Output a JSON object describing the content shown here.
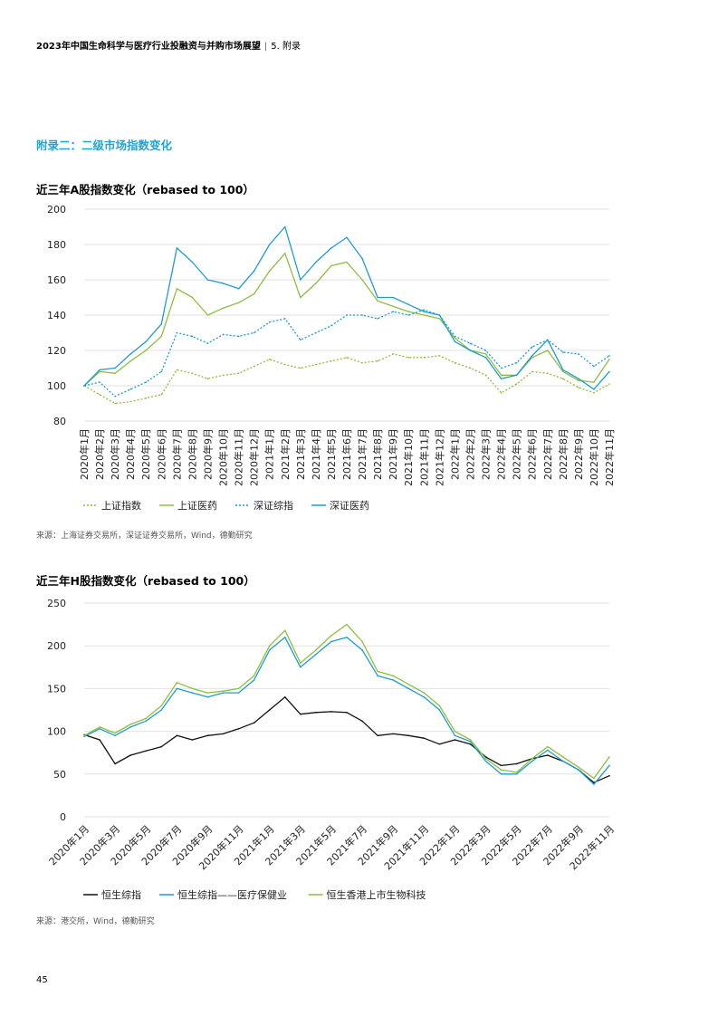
{
  "header": {
    "report_title": "2023年中国生命科学与医疗行业投融资与并购市场展望",
    "separator": "|",
    "section": "5. 附录"
  },
  "appendix_title": "附录二：二级市场指数变化",
  "page_number": "45",
  "charts": [
    {
      "title": "近三年A股指数变化（rebased to 100）",
      "source": "来源：上海证券交易所，深证证券交易所，Wind，德勤研究"
    },
    {
      "title": "近三年H股指数变化（rebased to 100）",
      "source": "来源：港交所，Wind，德勤研究"
    }
  ],
  "chart_data": [
    {
      "type": "line",
      "title": "近三年A股指数变化（rebased to 100）",
      "xlabel": "",
      "ylabel": "",
      "ylim": [
        80,
        200
      ],
      "y_ticks": [
        80,
        100,
        120,
        140,
        160,
        180,
        200
      ],
      "grid": true,
      "legend": "bottom",
      "categories": [
        "2020年1月",
        "2020年2月",
        "2020年3月",
        "2020年4月",
        "2020年5月",
        "2020年6月",
        "2020年7月",
        "2020年8月",
        "2020年9月",
        "2020年10月",
        "2020年11月",
        "2020年12月",
        "2021年1月",
        "2021年2月",
        "2021年3月",
        "2021年4月",
        "2021年5月",
        "2021年6月",
        "2021年7月",
        "2021年8月",
        "2021年9月",
        "2021年10月",
        "2021年11月",
        "2021年12月",
        "2022年1月",
        "2022年2月",
        "2022年3月",
        "2022年4月",
        "2022年5月",
        "2022年6月",
        "2022年7月",
        "2022年8月",
        "2022年9月",
        "2022年10月",
        "2022年11月"
      ],
      "series": [
        {
          "name": "上证指数",
          "color": "#8cbf3f",
          "dash": "2,2",
          "values": [
            100,
            95,
            90,
            91,
            93,
            95,
            109,
            107,
            104,
            106,
            107,
            111,
            115,
            112,
            110,
            112,
            114,
            116,
            113,
            114,
            118,
            116,
            116,
            117,
            113,
            110,
            106,
            96,
            101,
            108,
            107,
            104,
            99,
            96,
            101
          ]
        },
        {
          "name": "上证医药",
          "color": "#8cbf3f",
          "dash": "",
          "values": [
            100,
            108,
            107,
            114,
            120,
            128,
            155,
            150,
            140,
            144,
            147,
            152,
            165,
            175,
            150,
            158,
            168,
            170,
            160,
            148,
            145,
            142,
            140,
            138,
            127,
            120,
            118,
            106,
            106,
            116,
            120,
            108,
            103,
            102,
            115
          ]
        },
        {
          "name": "深证综指",
          "color": "#1f9bd1",
          "dash": "2,2",
          "values": [
            100,
            102,
            94,
            98,
            102,
            108,
            130,
            128,
            124,
            129,
            128,
            130,
            136,
            138,
            126,
            130,
            134,
            140,
            140,
            138,
            142,
            140,
            143,
            140,
            128,
            124,
            120,
            110,
            113,
            122,
            126,
            119,
            118,
            111,
            117
          ]
        },
        {
          "name": "深证医药",
          "color": "#1f9bd1",
          "dash": "",
          "values": [
            100,
            109,
            110,
            118,
            125,
            135,
            178,
            170,
            160,
            158,
            155,
            165,
            180,
            190,
            160,
            170,
            178,
            184,
            172,
            150,
            150,
            146,
            142,
            140,
            125,
            120,
            116,
            104,
            106,
            117,
            126,
            109,
            104,
            98,
            108
          ]
        }
      ]
    },
    {
      "type": "line",
      "title": "近三年H股指数变化（rebased to 100）",
      "xlabel": "",
      "ylabel": "",
      "ylim": [
        0,
        250
      ],
      "y_ticks": [
        0,
        50,
        100,
        150,
        200,
        250
      ],
      "grid": true,
      "legend": "bottom",
      "categories": [
        "2020年1月",
        "2020年2月",
        "2020年3月",
        "2020年4月",
        "2020年5月",
        "2020年6月",
        "2020年7月",
        "2020年8月",
        "2020年9月",
        "2020年10月",
        "2020年11月",
        "2020年12月",
        "2021年1月",
        "2021年2月",
        "2021年3月",
        "2021年4月",
        "2021年5月",
        "2021年6月",
        "2021年7月",
        "2021年8月",
        "2021年9月",
        "2021年10月",
        "2021年11月",
        "2021年12月",
        "2022年1月",
        "2022年2月",
        "2022年3月",
        "2022年4月",
        "2022年5月",
        "2022年6月",
        "2022年7月",
        "2022年8月",
        "2022年9月",
        "2022年10月",
        "2022年11月"
      ],
      "tick_labels": [
        "2020年1月",
        "2020年3月",
        "2020年5月",
        "2020年7月",
        "2020年9月",
        "2020年11月",
        "2021年1月",
        "2021年3月",
        "2021年5月",
        "2021年7月",
        "2021年9月",
        "2021年11月",
        "2022年1月",
        "2022年3月",
        "2022年5月",
        "2022年7月",
        "2022年9月",
        "2022年11月"
      ],
      "series": [
        {
          "name": "恒生综指",
          "color": "#111111",
          "values": [
            96,
            90,
            62,
            72,
            77,
            82,
            95,
            90,
            95,
            97,
            103,
            110,
            125,
            140,
            120,
            122,
            123,
            122,
            112,
            95,
            97,
            95,
            92,
            85,
            90,
            85,
            70,
            60,
            62,
            68,
            72,
            65,
            55,
            40,
            48
          ]
        },
        {
          "name": "恒生综指——医疗保健业",
          "color": "#1f9bd1",
          "values": [
            94,
            103,
            95,
            105,
            112,
            125,
            150,
            145,
            140,
            145,
            145,
            160,
            195,
            210,
            175,
            190,
            205,
            210,
            195,
            165,
            160,
            150,
            140,
            125,
            95,
            88,
            65,
            50,
            50,
            65,
            78,
            65,
            55,
            38,
            60
          ]
        },
        {
          "name": "恒生香港上市生物科技",
          "color": "#8cbf3f",
          "values": [
            95,
            105,
            98,
            108,
            115,
            130,
            157,
            150,
            145,
            147,
            150,
            165,
            200,
            218,
            180,
            195,
            212,
            225,
            205,
            170,
            165,
            155,
            145,
            130,
            100,
            90,
            68,
            55,
            52,
            68,
            82,
            70,
            58,
            45,
            70
          ]
        }
      ]
    }
  ]
}
